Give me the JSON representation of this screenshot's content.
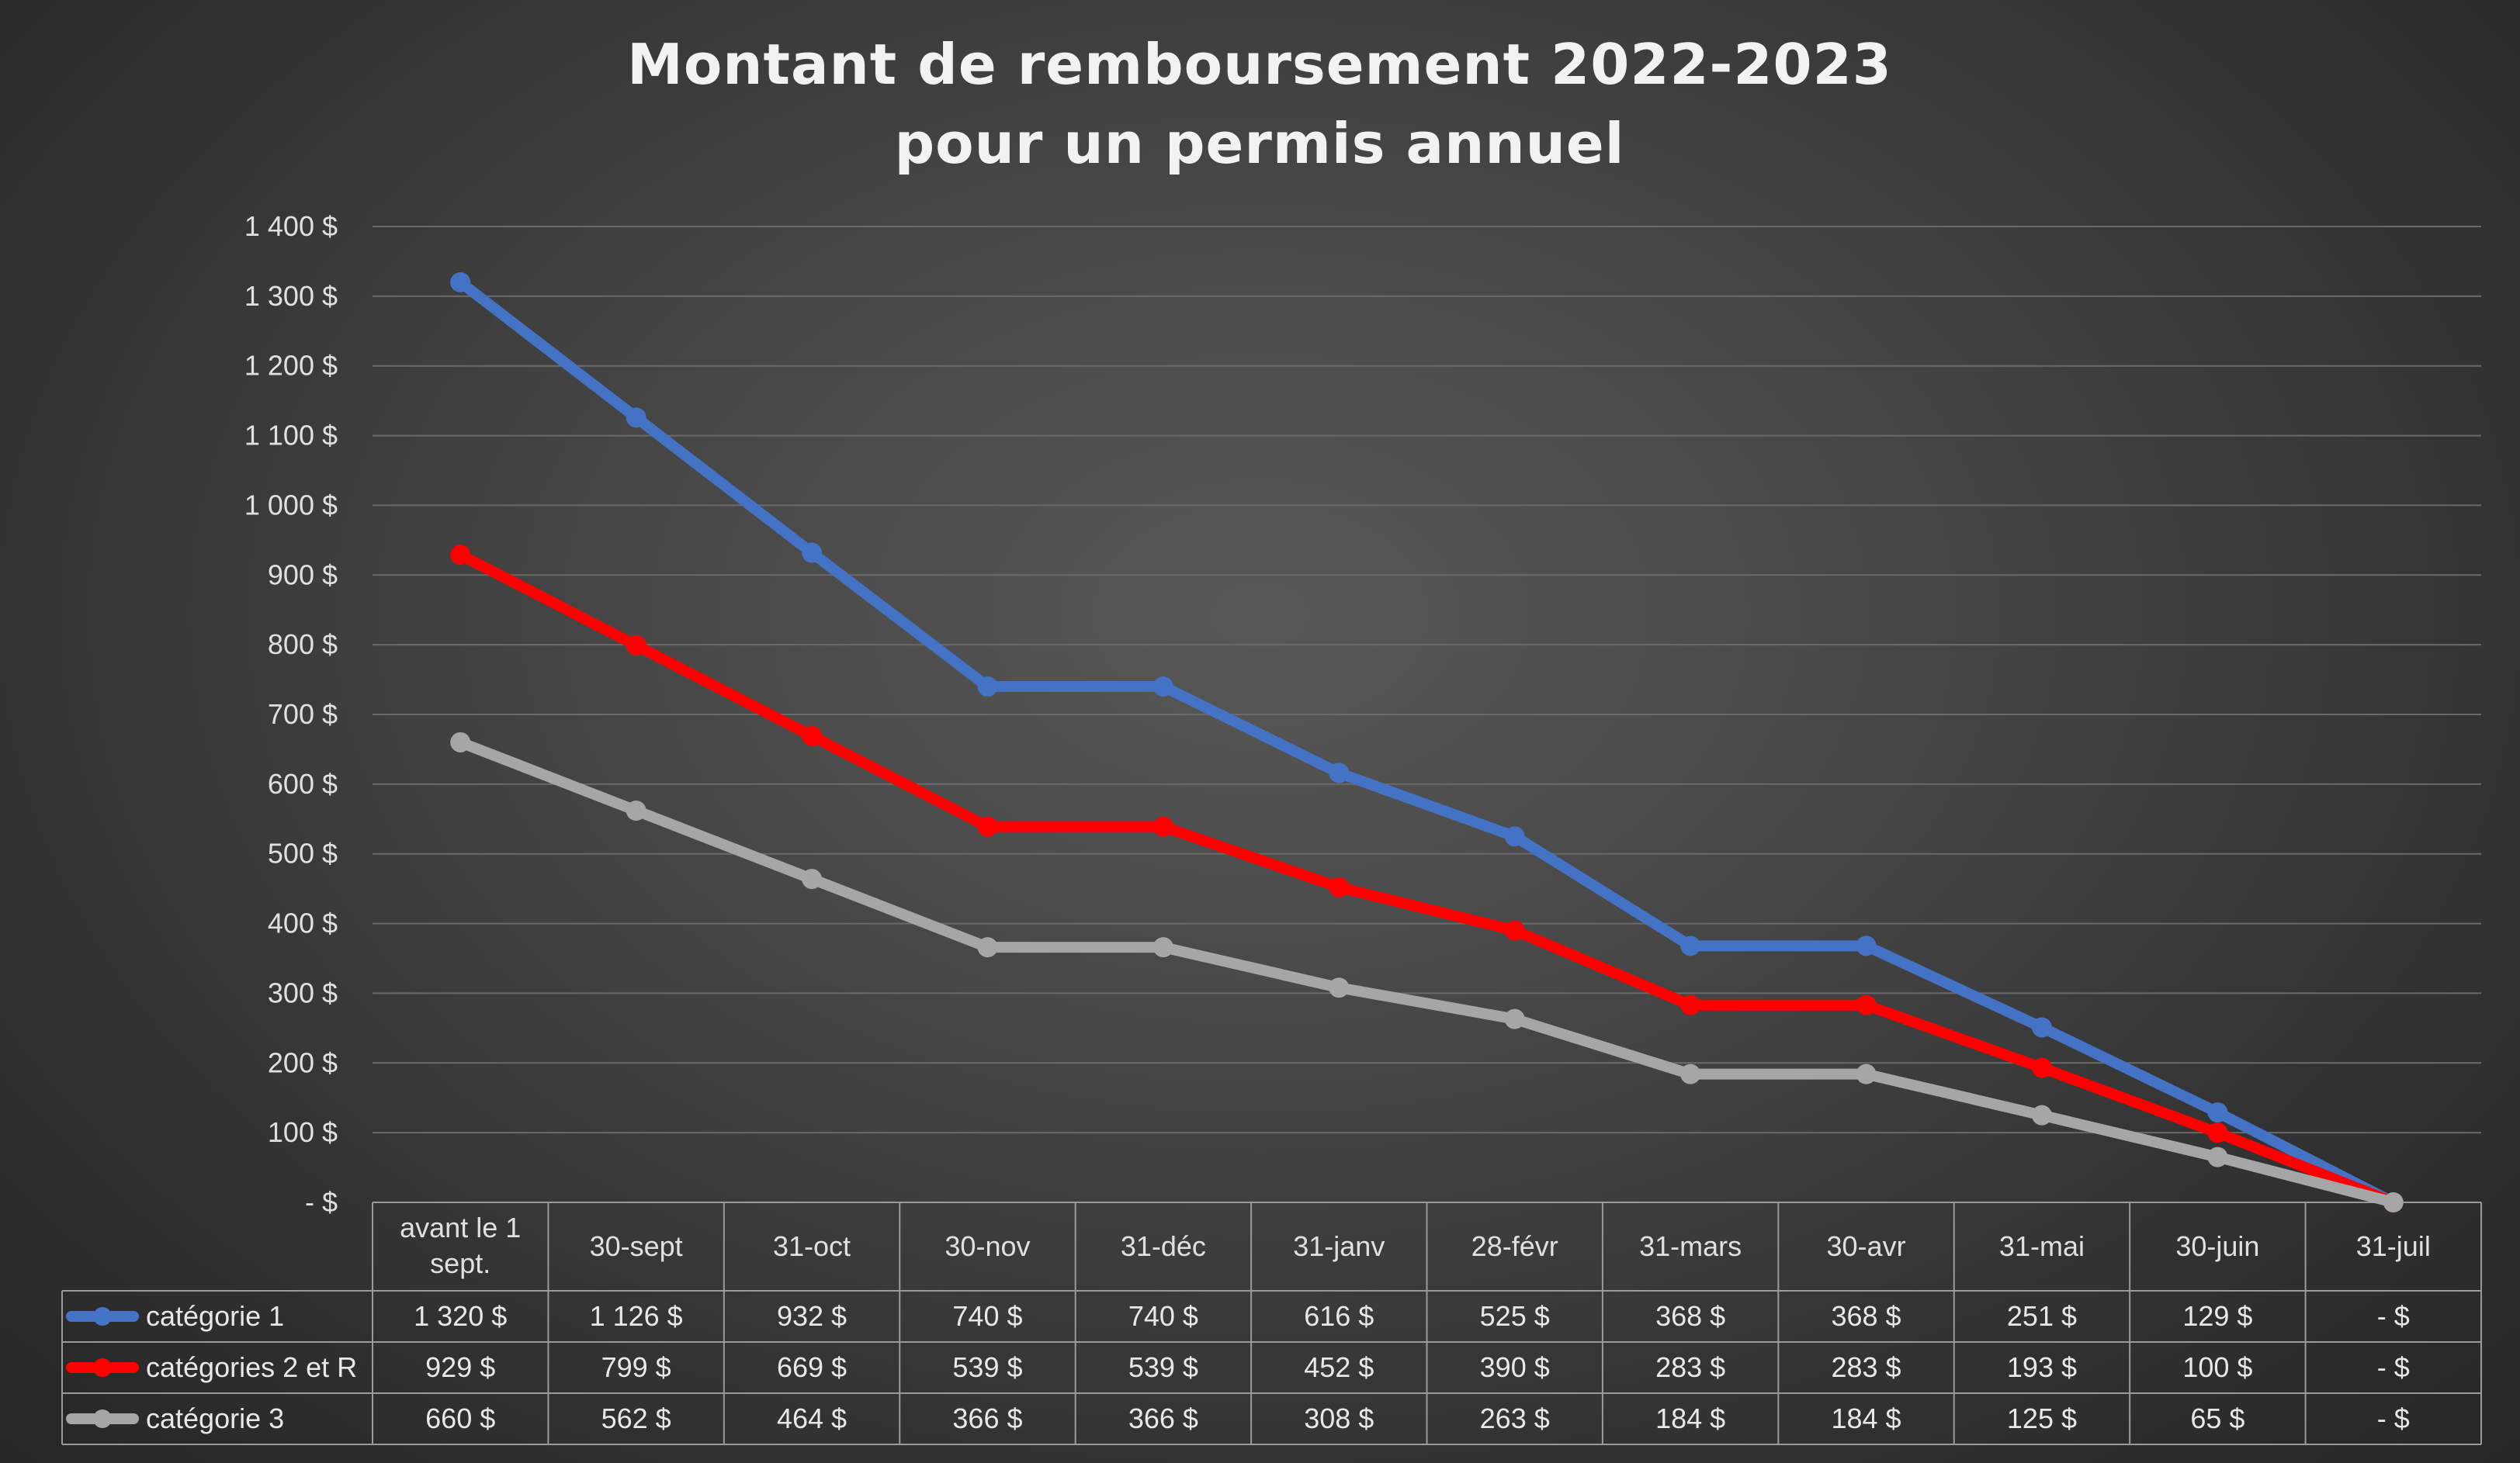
{
  "chart_data": {
    "type": "line",
    "title": "Montant de remboursement 2022-2023",
    "subtitle": "pour un permis annuel",
    "categories": [
      "avant le 1 sept.",
      "30-sept",
      "31-oct",
      "30-nov",
      "31-déc",
      "31-janv",
      "28-févr",
      "31-mars",
      "30-avr",
      "31-mai",
      "30-juin",
      "31-juil"
    ],
    "ylim": [
      0,
      1400
    ],
    "y_ticks": [
      0,
      100,
      200,
      300,
      400,
      500,
      600,
      700,
      800,
      900,
      1000,
      1100,
      1200,
      1300,
      1400
    ],
    "y_tick_labels": [
      "-  $",
      "100  $",
      "200  $",
      "300  $",
      "400  $",
      "500  $",
      "600  $",
      "700  $",
      "800  $",
      "900  $",
      "1 000  $",
      "1 100  $",
      "1 200  $",
      "1 300  $",
      "1 400  $"
    ],
    "grid": true,
    "legend": "data table",
    "series": [
      {
        "name": "catégorie 1",
        "color": "#4472c4",
        "values": [
          1320,
          1126,
          932,
          740,
          740,
          616,
          525,
          368,
          368,
          251,
          129,
          0
        ],
        "labels": [
          "1 320  $",
          "1 126  $",
          "932  $",
          "740  $",
          "740  $",
          "616  $",
          "525  $",
          "368  $",
          "368  $",
          "251  $",
          "129  $",
          "-   $"
        ]
      },
      {
        "name": "catégories 2 et R",
        "color": "#ff0000",
        "values": [
          929,
          799,
          669,
          539,
          539,
          452,
          390,
          283,
          283,
          193,
          100,
          0
        ],
        "labels": [
          "929  $",
          "799  $",
          "669  $",
          "539  $",
          "539  $",
          "452  $",
          "390  $",
          "283  $",
          "283  $",
          "193  $",
          "100  $",
          "-   $"
        ]
      },
      {
        "name": "catégorie 3",
        "color": "#a6a6a6",
        "values": [
          660,
          562,
          464,
          366,
          366,
          308,
          263,
          184,
          184,
          125,
          65,
          0
        ],
        "labels": [
          "660  $",
          "562  $",
          "464  $",
          "366  $",
          "366  $",
          "308  $",
          "263  $",
          "184  $",
          "184  $",
          "125  $",
          "65  $",
          "-   $"
        ]
      }
    ]
  }
}
